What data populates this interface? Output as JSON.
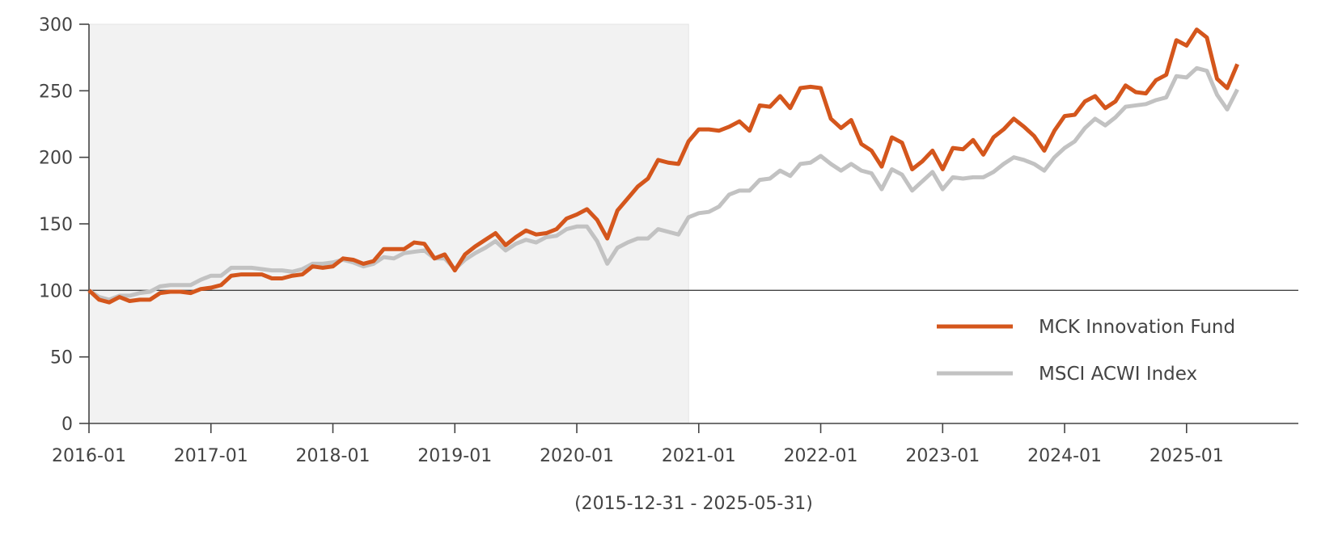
{
  "chart_data": {
    "type": "line",
    "title": "",
    "xlabel": "(2015-12-31 - 2025-05-31)",
    "ylabel": "",
    "ylim": [
      0,
      300
    ],
    "yticks": [
      0,
      50,
      100,
      150,
      200,
      250,
      300
    ],
    "xticks": [
      "2016-01",
      "2017-01",
      "2018-01",
      "2019-01",
      "2020-01",
      "2021-01",
      "2022-01",
      "2023-01",
      "2024-01",
      "2025-01"
    ],
    "x_range": [
      "2016-01",
      "2025-12"
    ],
    "baseline": 100,
    "shaded_region": {
      "start": "2016-01",
      "end": "2020-12"
    },
    "legend_position": "lower-right",
    "grid": false,
    "series": [
      {
        "name": "MCK Innovation Fund",
        "color": "#d4561c",
        "x_start": "2016-01",
        "values": [
          100,
          93,
          91,
          95,
          92,
          93,
          93,
          98,
          99,
          99,
          98,
          101,
          102,
          104,
          111,
          112,
          112,
          112,
          109,
          109,
          111,
          112,
          118,
          117,
          118,
          124,
          123,
          120,
          122,
          131,
          131,
          131,
          136,
          135,
          124,
          127,
          115,
          127,
          133,
          138,
          143,
          134,
          140,
          145,
          142,
          143,
          146,
          154,
          157,
          161,
          153,
          139,
          160,
          169,
          178,
          184,
          198,
          196,
          195,
          212,
          221,
          221,
          220,
          223,
          227,
          220,
          239,
          238,
          246,
          237,
          252,
          253,
          252,
          229,
          222,
          228,
          210,
          205,
          193,
          215,
          211,
          191,
          197,
          205,
          191,
          207,
          206,
          213,
          202,
          215,
          221,
          229,
          223,
          216,
          205,
          220,
          231,
          232,
          242,
          246,
          237,
          242,
          254,
          249,
          248,
          258,
          262,
          288,
          284,
          296,
          290,
          259,
          252,
          270
        ]
      },
      {
        "name": "MSCI ACWI Index",
        "color": "#c2c2c2",
        "x_start": "2016-01",
        "values": [
          100,
          95,
          93,
          96,
          96,
          98,
          99,
          103,
          104,
          104,
          104,
          108,
          111,
          111,
          117,
          117,
          117,
          116,
          115,
          115,
          114,
          116,
          120,
          120,
          121,
          123,
          121,
          118,
          120,
          125,
          124,
          128,
          129,
          130,
          124,
          124,
          116,
          123,
          128,
          132,
          137,
          130,
          135,
          138,
          136,
          140,
          141,
          146,
          148,
          148,
          137,
          120,
          132,
          136,
          139,
          139,
          146,
          144,
          142,
          155,
          158,
          159,
          163,
          172,
          175,
          175,
          183,
          184,
          190,
          186,
          195,
          196,
          201,
          195,
          190,
          195,
          190,
          188,
          176,
          191,
          187,
          175,
          182,
          189,
          176,
          185,
          184,
          185,
          185,
          189,
          195,
          200,
          198,
          195,
          190,
          200,
          207,
          212,
          222,
          229,
          224,
          230,
          238,
          239,
          240,
          243,
          245,
          261,
          260,
          267,
          265,
          247,
          236,
          251
        ]
      }
    ]
  }
}
